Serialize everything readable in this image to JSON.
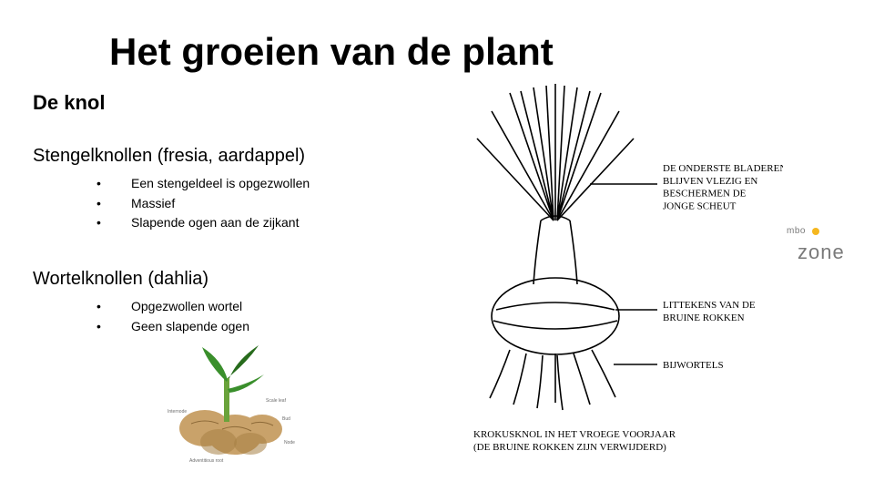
{
  "title": "Het groeien van de plant",
  "subtitle": "De knol",
  "section1": {
    "heading": "Stengelknollen (fresia, aardappel)",
    "bullets": [
      "Een stengeldeel is opgezwollen",
      "Massief",
      "Slapende ogen aan de zijkant"
    ]
  },
  "section2": {
    "heading": "Wortelknollen (dahlia)",
    "bullets": [
      "Opgezwollen wortel",
      "Geen slapende ogen"
    ]
  },
  "diagram": {
    "labels": {
      "top": "DE ONDERSTE BLADEREN\nBLIJVEN VLEZIG EN\nBESCHERMEN DE\nJONGE SCHEUT",
      "middle": "LITTEKENS VAN DE\nBRUINE ROKKEN",
      "bottom": "BIJWORTELS"
    },
    "caption": "KROKUSKNOL IN HET VROEGE VOORJAAR\n(DE BRUINE ROKKEN ZIJN VERWIJDERD)",
    "colors": {
      "stroke": "#000000",
      "fill": "#ffffff"
    }
  },
  "plant_photo": {
    "rhizome_color": "#c9a26a",
    "rhizome_shadow": "#a67f44",
    "leaf_color": "#3a8f2c",
    "leaf_dark": "#276b1c",
    "stem_color": "#6aa33b",
    "caption_color": "#6d6d6d",
    "labels": {
      "scale_leaf": "Scale leaf",
      "bud": "Bud",
      "node": "Node",
      "internode": "Internode",
      "adv_root": "Adventitious root"
    }
  },
  "logo": {
    "mbo": "mbo",
    "zone": "zone",
    "dot_color": "#f5b71f",
    "text_color": "#7a7a7a"
  }
}
